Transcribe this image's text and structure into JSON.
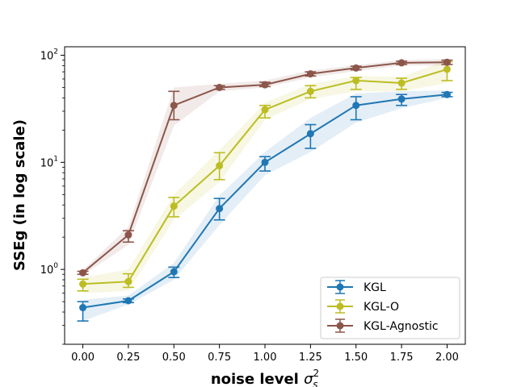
{
  "chart_data": {
    "type": "line",
    "x": [
      0.0,
      0.25,
      0.5,
      0.75,
      1.0,
      1.25,
      1.5,
      1.75,
      2.0
    ],
    "x_tick_labels": [
      "0.00",
      "0.25",
      "0.50",
      "0.75",
      "1.00",
      "1.25",
      "1.50",
      "1.75",
      "2.00"
    ],
    "xlim": [
      -0.1,
      2.1
    ],
    "yscale": "log",
    "ylim": [
      0.2,
      120
    ],
    "y_ticks": [
      {
        "value": 1,
        "base": "10",
        "exp": "0"
      },
      {
        "value": 10,
        "base": "10",
        "exp": "1"
      },
      {
        "value": 100,
        "base": "10",
        "exp": "2"
      }
    ],
    "xlabel_main": "noise level ",
    "xlabel_symbol": "σ",
    "xlabel_sup": "2",
    "xlabel_sub": "s",
    "ylabel": "SSEg (in log scale)",
    "grid": false,
    "legend_position": "bottom-right",
    "series": [
      {
        "name": "KGL",
        "color": "#1f77b4",
        "values": [
          0.44,
          0.51,
          0.95,
          3.7,
          10.0,
          18.5,
          34.0,
          39.0,
          43.0
        ],
        "err_low": [
          0.33,
          0.49,
          0.84,
          2.9,
          8.3,
          13.5,
          25.0,
          34.0,
          41.0
        ],
        "err_high": [
          0.5,
          0.53,
          1.05,
          4.6,
          11.3,
          22.5,
          41.0,
          43.0,
          45.0
        ],
        "band_low": [
          0.33,
          0.47,
          0.8,
          2.6,
          7.6,
          12.5,
          23.5,
          32.0,
          40.0
        ],
        "band_high": [
          0.52,
          0.57,
          1.15,
          4.9,
          12.5,
          26.0,
          44.0,
          46.0,
          47.0
        ]
      },
      {
        "name": "KGL-O",
        "color": "#bcbd22",
        "values": [
          0.73,
          0.77,
          3.9,
          9.3,
          31.0,
          46.0,
          58.0,
          55.0,
          74.0
        ],
        "err_low": [
          0.63,
          0.68,
          3.1,
          6.9,
          26.0,
          40.0,
          48.0,
          48.0,
          58.0
        ],
        "err_high": [
          0.81,
          0.91,
          4.7,
          12.3,
          34.0,
          52.0,
          62.0,
          61.0,
          87.0
        ],
        "band_low": [
          0.6,
          0.63,
          2.9,
          6.5,
          25.0,
          39.0,
          46.0,
          46.0,
          55.0
        ],
        "band_high": [
          0.84,
          1.0,
          5.0,
          13.0,
          36.0,
          54.0,
          64.0,
          63.0,
          90.0
        ]
      },
      {
        "name": "KGL-Agnostic",
        "color": "#8c564b",
        "values": [
          0.93,
          2.1,
          34.0,
          50.0,
          53.0,
          67.0,
          76.0,
          85.0,
          86.0
        ],
        "err_low": [
          0.9,
          1.8,
          25.0,
          48.0,
          51.0,
          64.0,
          73.0,
          82.0,
          82.0
        ],
        "err_high": [
          0.96,
          2.3,
          46.0,
          52.0,
          56.0,
          70.0,
          79.0,
          88.0,
          90.0
        ],
        "band_low": [
          0.88,
          1.7,
          22.0,
          46.0,
          50.0,
          62.0,
          71.0,
          80.0,
          80.0
        ],
        "band_high": [
          0.98,
          2.5,
          50.0,
          54.0,
          58.0,
          72.0,
          81.0,
          90.0,
          92.0
        ]
      }
    ]
  }
}
